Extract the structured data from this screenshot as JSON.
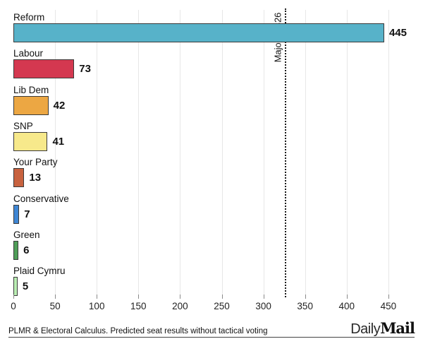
{
  "chart_data": {
    "type": "bar",
    "orientation": "horizontal",
    "title": "",
    "xlabel": "",
    "ylabel": "",
    "categories": [
      "Reform",
      "Labour",
      "Lib Dem",
      "SNP",
      "Your Party",
      "Conservative",
      "Green",
      "Plaid Cymru"
    ],
    "values": [
      445,
      73,
      42,
      41,
      13,
      7,
      6,
      5
    ],
    "bar_colors": [
      "#57b2c9",
      "#d43850",
      "#eca743",
      "#f7e98b",
      "#c8623f",
      "#3f86d4",
      "#4f9d58",
      "#baeeb3"
    ],
    "bar_border_color": "#3a3a3a",
    "x_ticks": [
      0,
      50,
      100,
      150,
      200,
      250,
      300,
      350,
      400,
      450
    ],
    "xlim": [
      0,
      472
    ],
    "grid": true,
    "reference_line": {
      "value": 326,
      "label": "Majority 326",
      "style": "dotted",
      "color": "#1a1a1a"
    }
  },
  "footer": {
    "source": "PLMR & Electoral Calculus. Predicted seat results without tactical voting",
    "logo_daily": "Daily",
    "logo_mail": "Mail"
  }
}
